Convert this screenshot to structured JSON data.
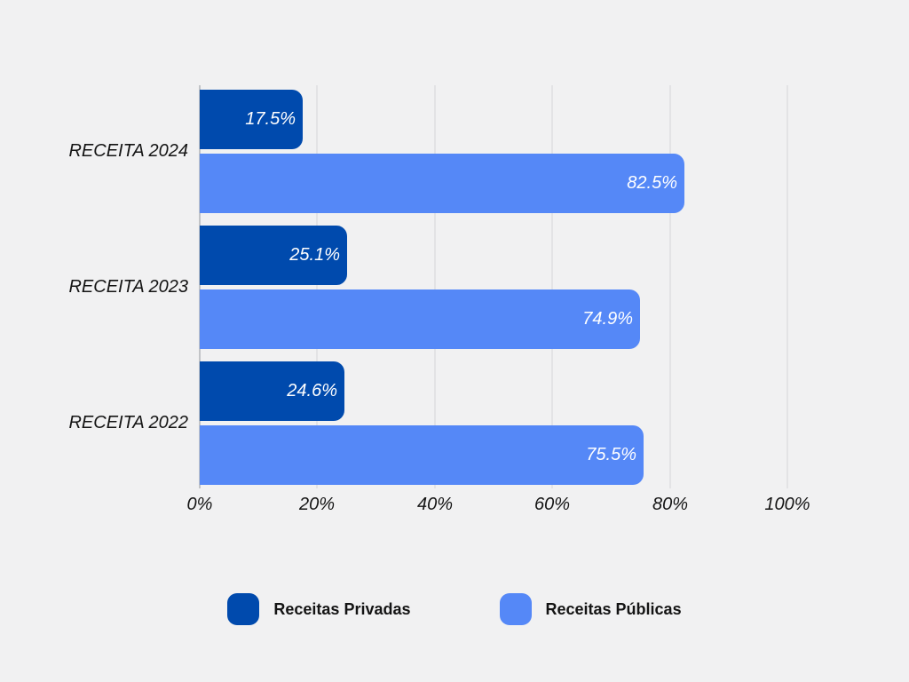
{
  "chart_data": {
    "type": "bar",
    "orientation": "horizontal",
    "title": "",
    "xlabel": "",
    "ylabel": "",
    "categories": [
      "RECEITA 2024",
      "RECEITA 2023",
      "RECEITA 2022"
    ],
    "series": [
      {
        "name": "Receitas Privadas",
        "color": "#004aad",
        "values": [
          17.5,
          25.1,
          24.6
        ]
      },
      {
        "name": "Receitas Públicas",
        "color": "#5588f7",
        "values": [
          82.5,
          74.9,
          75.5
        ]
      }
    ],
    "value_labels": [
      [
        "17.5%",
        "25.1%",
        "24.6%"
      ],
      [
        "82.5%",
        "74.9%",
        "75.5%"
      ]
    ],
    "xlim": [
      0,
      100
    ],
    "xticks": [
      0,
      20,
      40,
      60,
      80,
      100
    ],
    "xtick_labels": [
      "0%",
      "20%",
      "40%",
      "60%",
      "80%",
      "100%"
    ],
    "grid": "vertical-only",
    "legend_position": "bottom"
  },
  "style": {
    "background": "#f1f1f2",
    "gridline_color": "#e3e3e5",
    "zero_line_color": "#c2c4c7",
    "value_label_color": "#ffffff",
    "text_color": "#141414"
  },
  "legend": {
    "items": [
      {
        "label": "Receitas Privadas",
        "color": "#004aad"
      },
      {
        "label": "Receitas Públicas",
        "color": "#5588f7"
      }
    ]
  }
}
